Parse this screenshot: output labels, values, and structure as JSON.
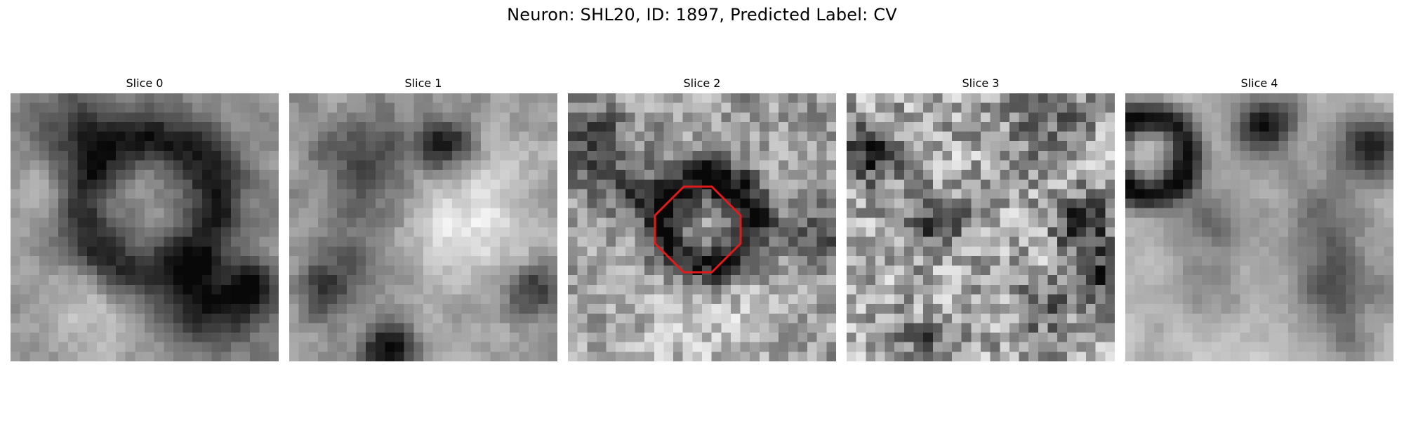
{
  "figure": {
    "title": "Neuron: SHL20, ID: 1897, Predicted Label: CV"
  },
  "panels": [
    {
      "title": "Slice 0"
    },
    {
      "title": "Slice 1"
    },
    {
      "title": "Slice 2",
      "marker": {
        "shape": "octagon",
        "color": "#e31a1c"
      }
    },
    {
      "title": "Slice 3"
    },
    {
      "title": "Slice 4"
    }
  ],
  "colormap": "gray"
}
